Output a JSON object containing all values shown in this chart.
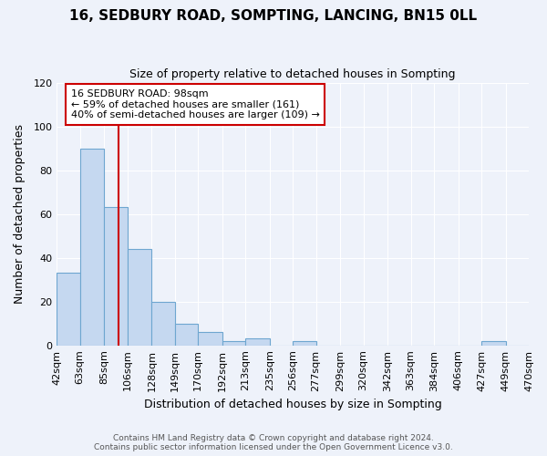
{
  "title": "16, SEDBURY ROAD, SOMPTING, LANCING, BN15 0LL",
  "subtitle": "Size of property relative to detached houses in Sompting",
  "xlabel": "Distribution of detached houses by size in Sompting",
  "ylabel": "Number of detached properties",
  "bin_edges": [
    42,
    63,
    85,
    106,
    128,
    149,
    170,
    192,
    213,
    235,
    256,
    277,
    299,
    320,
    342,
    363,
    384,
    406,
    427,
    449,
    470
  ],
  "bin_labels": [
    "42sqm",
    "63sqm",
    "85sqm",
    "106sqm",
    "128sqm",
    "149sqm",
    "170sqm",
    "192sqm",
    "213sqm",
    "235sqm",
    "256sqm",
    "277sqm",
    "299sqm",
    "320sqm",
    "342sqm",
    "363sqm",
    "384sqm",
    "406sqm",
    "427sqm",
    "449sqm",
    "470sqm"
  ],
  "counts": [
    33,
    90,
    63,
    44,
    20,
    10,
    6,
    2,
    3,
    0,
    2,
    0,
    0,
    0,
    0,
    0,
    0,
    0,
    2,
    0
  ],
  "bar_color": "#C5D8F0",
  "bar_edge_color": "#6EA6D0",
  "vline_x": 98,
  "vline_color": "#CC0000",
  "annotation_text": "16 SEDBURY ROAD: 98sqm\n← 59% of detached houses are smaller (161)\n40% of semi-detached houses are larger (109) →",
  "annotation_box_color": "white",
  "annotation_box_edge_color": "#CC0000",
  "ylim": [
    0,
    120
  ],
  "yticks": [
    0,
    20,
    40,
    60,
    80,
    100,
    120
  ],
  "footer_line1": "Contains HM Land Registry data © Crown copyright and database right 2024.",
  "footer_line2": "Contains public sector information licensed under the Open Government Licence v3.0.",
  "background_color": "#EEF2FA",
  "grid_color": "#FFFFFF"
}
